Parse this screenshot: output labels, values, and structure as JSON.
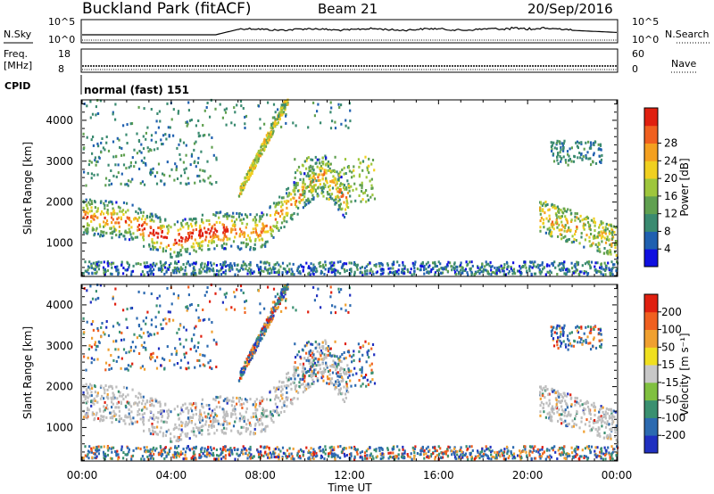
{
  "header": {
    "station": "Buckland Park (fitACF)",
    "beam": "Beam 21",
    "date": "20/Sep/2016"
  },
  "noise_panel": {
    "left_label": "N.Sky",
    "right_label": "N.Search",
    "left_ticks": [
      "10^5",
      "10^0"
    ],
    "right_ticks": [
      "10^5",
      "10^0"
    ]
  },
  "freq_panel": {
    "label_line1": "Freq.",
    "label_line2": "[MHz]",
    "left_ticks": [
      "18",
      "8"
    ],
    "right_label": "Nave",
    "right_ticks": [
      "60",
      "0"
    ]
  },
  "cpid": {
    "label": "CPID",
    "value": "normal (fast) 151"
  },
  "chart_data": [
    {
      "type": "heatmap",
      "title": "",
      "ylabel": "Slant Range [km]",
      "xlabel": "Time UT",
      "x_ticks": [
        "00:00",
        "04:00",
        "08:00",
        "12:00",
        "16:00",
        "20:00",
        "00:00"
      ],
      "y_ticks": [
        "1000",
        "2000",
        "3000",
        "4000"
      ],
      "xlim_hours": [
        0,
        24
      ],
      "ylim_km": [
        180,
        4500
      ],
      "colorbar": {
        "label": "Power [dB]",
        "ticks": [
          "4",
          "8",
          "12",
          "16",
          "20",
          "24",
          "28"
        ],
        "range": [
          0,
          30
        ],
        "colors": [
          "#1010e0",
          "#2060b0",
          "#3a8a70",
          "#60a050",
          "#9ec63c",
          "#f0d020",
          "#f4a020",
          "#f06020",
          "#e02010"
        ]
      }
    },
    {
      "type": "heatmap",
      "title": "",
      "ylabel": "Slant Range [km]",
      "xlabel": "Time UT",
      "x_ticks": [
        "00:00",
        "04:00",
        "08:00",
        "12:00",
        "16:00",
        "20:00",
        "00:00"
      ],
      "y_ticks": [
        "1000",
        "2000",
        "3000",
        "4000"
      ],
      "xlim_hours": [
        0,
        24
      ],
      "ylim_km": [
        180,
        4500
      ],
      "colorbar": {
        "label": "Velocity [m s⁻¹]",
        "ticks": [
          "200",
          "100",
          "50",
          "15",
          "-15",
          "-50",
          "-100",
          "-200"
        ],
        "range": [
          -250,
          250
        ],
        "colors": [
          "#2030c0",
          "#2c6ab0",
          "#3a9070",
          "#80c040",
          "#c8c8c8",
          "#f0e020",
          "#f0a030",
          "#f06020",
          "#e02010"
        ]
      }
    }
  ],
  "time_axis": {
    "label": "Time UT",
    "ticks": [
      "00:00",
      "04:00",
      "08:00",
      "12:00",
      "16:00",
      "20:00",
      "00:00"
    ]
  },
  "colors": {
    "ground_scatter": "#bebebe",
    "frame": "#000000"
  }
}
